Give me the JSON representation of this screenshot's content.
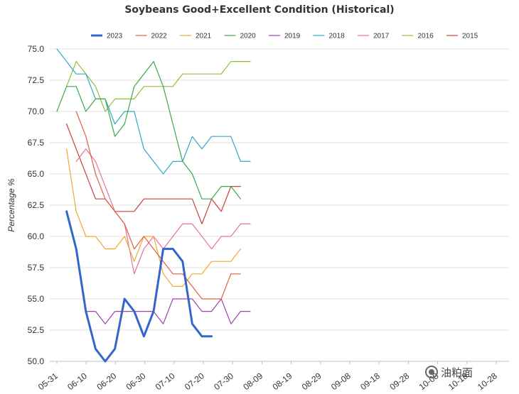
{
  "chart_data": {
    "type": "line",
    "title": "Soybeans Good+Excellent Condition (Historical)",
    "xlabel": "",
    "ylabel": "Percentage %",
    "ylim": [
      50,
      75
    ],
    "yticks": [
      "75.0",
      "72.5",
      "70.0",
      "67.5",
      "65.0",
      "62.5",
      "60.0",
      "57.5",
      "55.0",
      "52.5",
      "50.0"
    ],
    "x_categories": [
      "05-31",
      "06-10",
      "06-20",
      "06-30",
      "07-10",
      "07-20",
      "07-30",
      "08-09",
      "08-19",
      "08-29",
      "09-08",
      "09-18",
      "09-28",
      "10-08",
      "10-18",
      "10-28"
    ],
    "grid": "horizontal",
    "legend_position": "top",
    "series": [
      {
        "name": "2023",
        "color": "#3366cc",
        "width": 3,
        "start": 1,
        "values": [
          62,
          59,
          54,
          51,
          50,
          51,
          55,
          54,
          52,
          54,
          59,
          59,
          58,
          53,
          52,
          52
        ]
      },
      {
        "name": "2022",
        "color": "#e06040",
        "width": 1.2,
        "start": 2,
        "values": [
          70,
          68,
          65,
          63,
          62,
          61,
          59,
          60,
          59,
          58,
          57,
          57,
          56,
          55,
          55,
          55,
          57,
          57
        ]
      },
      {
        "name": "2021",
        "color": "#f0a830",
        "width": 1.2,
        "start": 1,
        "values": [
          67,
          62,
          60,
          60,
          59,
          59,
          60,
          58,
          60,
          60,
          57,
          56,
          56,
          57,
          57,
          58,
          58,
          58,
          59
        ]
      },
      {
        "name": "2020",
        "color": "#3aa84a",
        "width": 1.2,
        "start": 0,
        "values": [
          70,
          72,
          72,
          70,
          71,
          71,
          68,
          69,
          72,
          73,
          74,
          72,
          69,
          66,
          65,
          63,
          63,
          64,
          64,
          63
        ]
      },
      {
        "name": "2019",
        "color": "#a040b0",
        "width": 1.2,
        "start": 3,
        "values": [
          54,
          54,
          53,
          54,
          54,
          54,
          54,
          54,
          53,
          55,
          55,
          55,
          54,
          54,
          55,
          53,
          54,
          54
        ]
      },
      {
        "name": "2018",
        "color": "#30a8c8",
        "width": 1.2,
        "start": 0,
        "values": [
          75,
          74,
          73,
          73,
          71,
          71,
          69,
          70,
          70,
          67,
          66,
          65,
          66,
          66,
          68,
          67,
          68,
          68,
          68,
          66,
          66
        ]
      },
      {
        "name": "2017",
        "color": "#e870a0",
        "width": 1.2,
        "start": 2,
        "values": [
          66,
          67,
          66,
          64,
          62,
          61,
          57,
          59,
          60,
          59,
          60,
          61,
          61,
          60,
          59,
          60,
          60,
          61,
          61
        ]
      },
      {
        "name": "2016",
        "color": "#8cc040",
        "width": 1.2,
        "start": 1,
        "values": [
          72,
          74,
          73,
          72,
          70,
          71,
          71,
          71,
          72,
          72,
          72,
          72,
          73,
          73,
          73,
          73,
          73,
          74,
          74,
          74
        ]
      },
      {
        "name": "2015",
        "color": "#c84040",
        "width": 1.2,
        "start": 1,
        "values": [
          69,
          67,
          65,
          63,
          63,
          62,
          62,
          62,
          63,
          63,
          63,
          63,
          63,
          63,
          61,
          63,
          62,
          64,
          64
        ]
      }
    ]
  },
  "watermark": {
    "text": "油粕面"
  }
}
